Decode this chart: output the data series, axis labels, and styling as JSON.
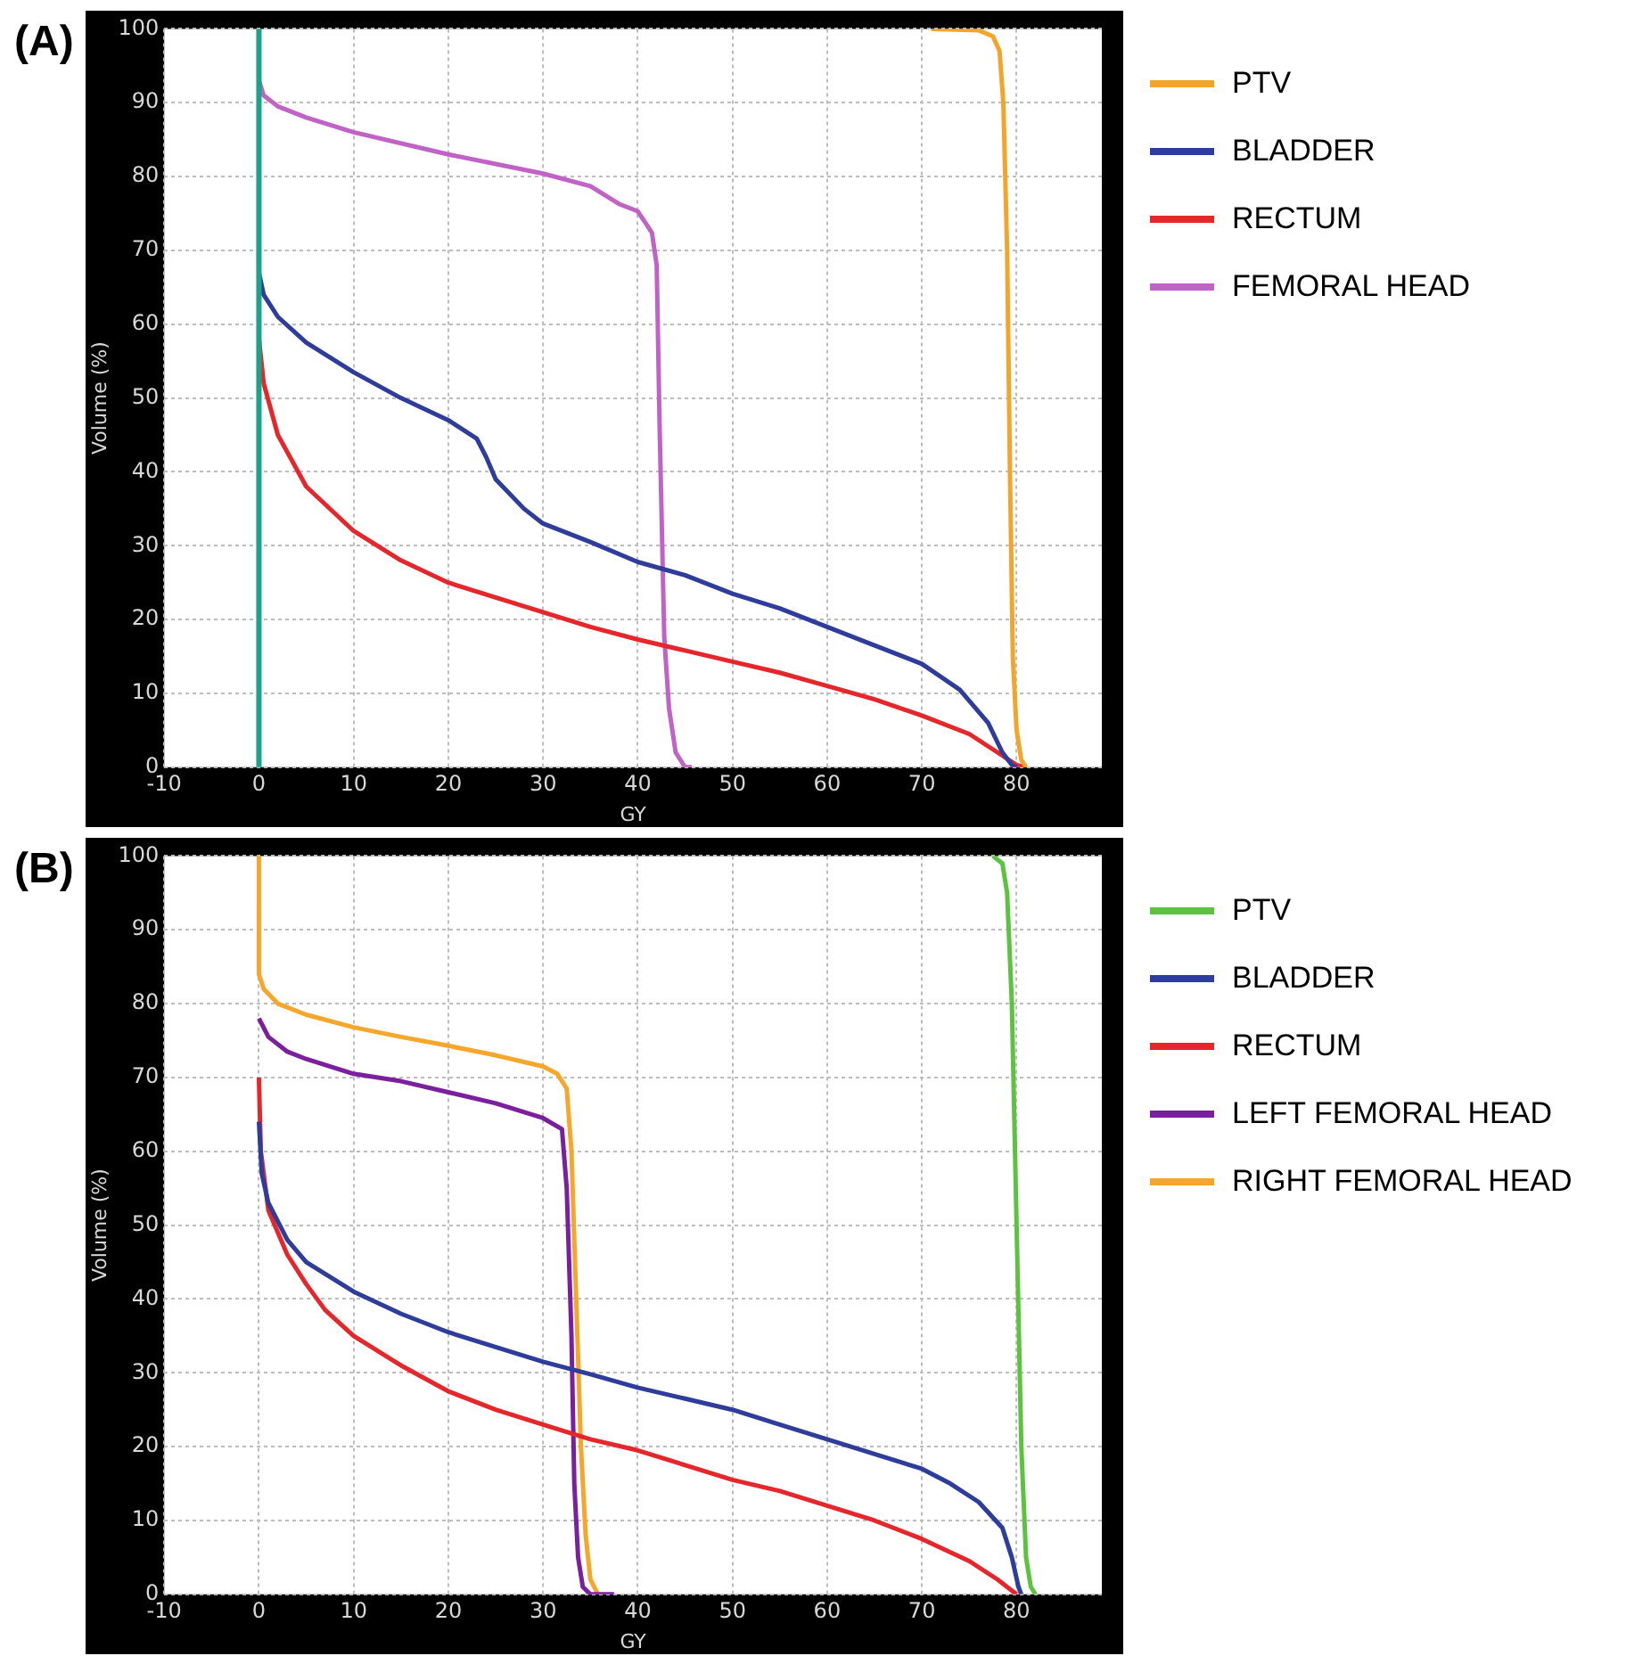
{
  "chart_data": [
    {
      "type": "line",
      "title": "(A)",
      "xlabel": "GY",
      "ylabel": "Volume (%)",
      "xlim": [
        -10,
        89
      ],
      "ylim": [
        0,
        100
      ],
      "xticks": [
        -10,
        0,
        10,
        20,
        30,
        40,
        50,
        60,
        70,
        80
      ],
      "yticks": [
        0,
        10,
        20,
        30,
        40,
        50,
        60,
        70,
        80,
        90,
        100
      ],
      "grid": true,
      "legend": "right",
      "marker": "none",
      "line_style": "solid",
      "ref_lines": [
        {
          "axis": "x",
          "value": 0,
          "color": "#1aa38a"
        }
      ],
      "series": [
        {
          "name": "PTV",
          "color": "#f5a42a",
          "x": [
            71,
            76,
            77.5,
            78.2,
            78.6,
            79,
            79.3,
            79.6,
            80,
            80.5,
            81
          ],
          "values": [
            100,
            99.8,
            99,
            97,
            90,
            70,
            40,
            15,
            5,
            1,
            0
          ]
        },
        {
          "name": "BLADDER",
          "color": "#2e3d9c",
          "x": [
            0,
            0,
            0.5,
            2,
            5,
            10,
            15,
            20,
            23,
            24,
            25,
            28,
            30,
            35,
            40,
            45,
            50,
            55,
            60,
            65,
            70,
            74,
            77,
            78.5,
            79.5,
            80
          ],
          "values": [
            70,
            67,
            64,
            61,
            57.5,
            53.5,
            50,
            47,
            44.5,
            42,
            39,
            35,
            33,
            30.5,
            27.8,
            26,
            23.5,
            21.5,
            19,
            16.5,
            14,
            10.5,
            6,
            2,
            0.3,
            0
          ]
        },
        {
          "name": "RECTUM",
          "color": "#e5262b",
          "x": [
            0,
            0.5,
            2,
            5,
            10,
            15,
            20,
            25,
            30,
            35,
            40,
            45,
            50,
            55,
            60,
            65,
            70,
            75,
            78,
            80,
            81
          ],
          "values": [
            58,
            52,
            45,
            38,
            32,
            28,
            25,
            23,
            21,
            19,
            17.3,
            15.8,
            14.3,
            12.8,
            11,
            9.2,
            7,
            4.5,
            2,
            0.3,
            0
          ]
        },
        {
          "name": "FEMORAL HEAD",
          "color": "#c062c6",
          "x": [
            0,
            0.5,
            2,
            5,
            10,
            20,
            30,
            35,
            38,
            40,
            41.5,
            42,
            42.3,
            42.8,
            43.3,
            44,
            45,
            45.7
          ],
          "values": [
            93,
            91,
            89.5,
            88,
            86,
            83,
            80.4,
            78.7,
            76.3,
            75.3,
            72.4,
            68,
            46.7,
            17.6,
            8,
            2,
            0,
            0
          ]
        }
      ]
    },
    {
      "type": "line",
      "title": "(B)",
      "xlabel": "GY",
      "ylabel": "Volume (%)",
      "xlim": [
        -10,
        89
      ],
      "ylim": [
        0,
        100
      ],
      "xticks": [
        -10,
        0,
        10,
        20,
        30,
        40,
        50,
        60,
        70,
        80
      ],
      "yticks": [
        0,
        10,
        20,
        30,
        40,
        50,
        60,
        70,
        80,
        90,
        100
      ],
      "grid": true,
      "legend": "right",
      "marker": "none",
      "line_style": "solid",
      "series": [
        {
          "name": "PTV",
          "color": "#5cc33e",
          "x": [
            77.5,
            78.5,
            79,
            79.5,
            80,
            80.5,
            81,
            81.5,
            82
          ],
          "values": [
            100,
            99,
            95,
            80,
            50,
            20,
            5,
            1,
            0
          ]
        },
        {
          "name": "BLADDER",
          "color": "#2e3d9c",
          "x": [
            0,
            0.3,
            1,
            3,
            5,
            10,
            15,
            20,
            25,
            30,
            35,
            40,
            45,
            50,
            55,
            60,
            65,
            70,
            73,
            76,
            78.5,
            79.5,
            80.2,
            80.5
          ],
          "values": [
            64,
            57,
            53,
            48,
            45,
            41,
            38,
            35.5,
            33.5,
            31.5,
            29.8,
            28,
            26.5,
            25,
            23,
            21,
            19,
            17,
            15,
            12.5,
            9,
            5,
            1,
            0
          ]
        },
        {
          "name": "RECTUM",
          "color": "#e5262b",
          "x": [
            0,
            0.2,
            1,
            3,
            5,
            7,
            10,
            15,
            20,
            25,
            30,
            35,
            40,
            45,
            50,
            55,
            60,
            65,
            70,
            75,
            78,
            80
          ],
          "values": [
            70,
            60,
            52,
            46,
            42,
            38.5,
            35,
            31,
            27.5,
            25,
            23,
            21,
            19.5,
            17.5,
            15.5,
            14,
            12,
            10,
            7.5,
            4.5,
            2,
            0
          ]
        },
        {
          "name": "LEFT FEMORAL HEAD",
          "color": "#7a1f9e",
          "x": [
            0,
            1,
            3,
            5,
            10,
            15,
            20,
            25,
            30,
            32,
            32.5,
            33,
            33.3,
            33.7,
            34.2,
            35,
            37.5
          ],
          "values": [
            78,
            75.5,
            73.5,
            72.5,
            70.5,
            69.5,
            68,
            66.5,
            64.5,
            63,
            55,
            35,
            15,
            5,
            1,
            0,
            0
          ]
        },
        {
          "name": "RIGHT FEMORAL HEAD",
          "color": "#f7a62c",
          "x": [
            0,
            0,
            0.5,
            2,
            5,
            10,
            15,
            20,
            25,
            30,
            31.5,
            32.5,
            33,
            33.5,
            34,
            34.5,
            35,
            35.8
          ],
          "values": [
            100,
            84,
            82,
            80,
            78.5,
            76.8,
            75.5,
            74.3,
            73,
            71.5,
            70.5,
            68.5,
            60,
            40,
            20,
            8,
            2,
            0
          ]
        }
      ]
    }
  ]
}
